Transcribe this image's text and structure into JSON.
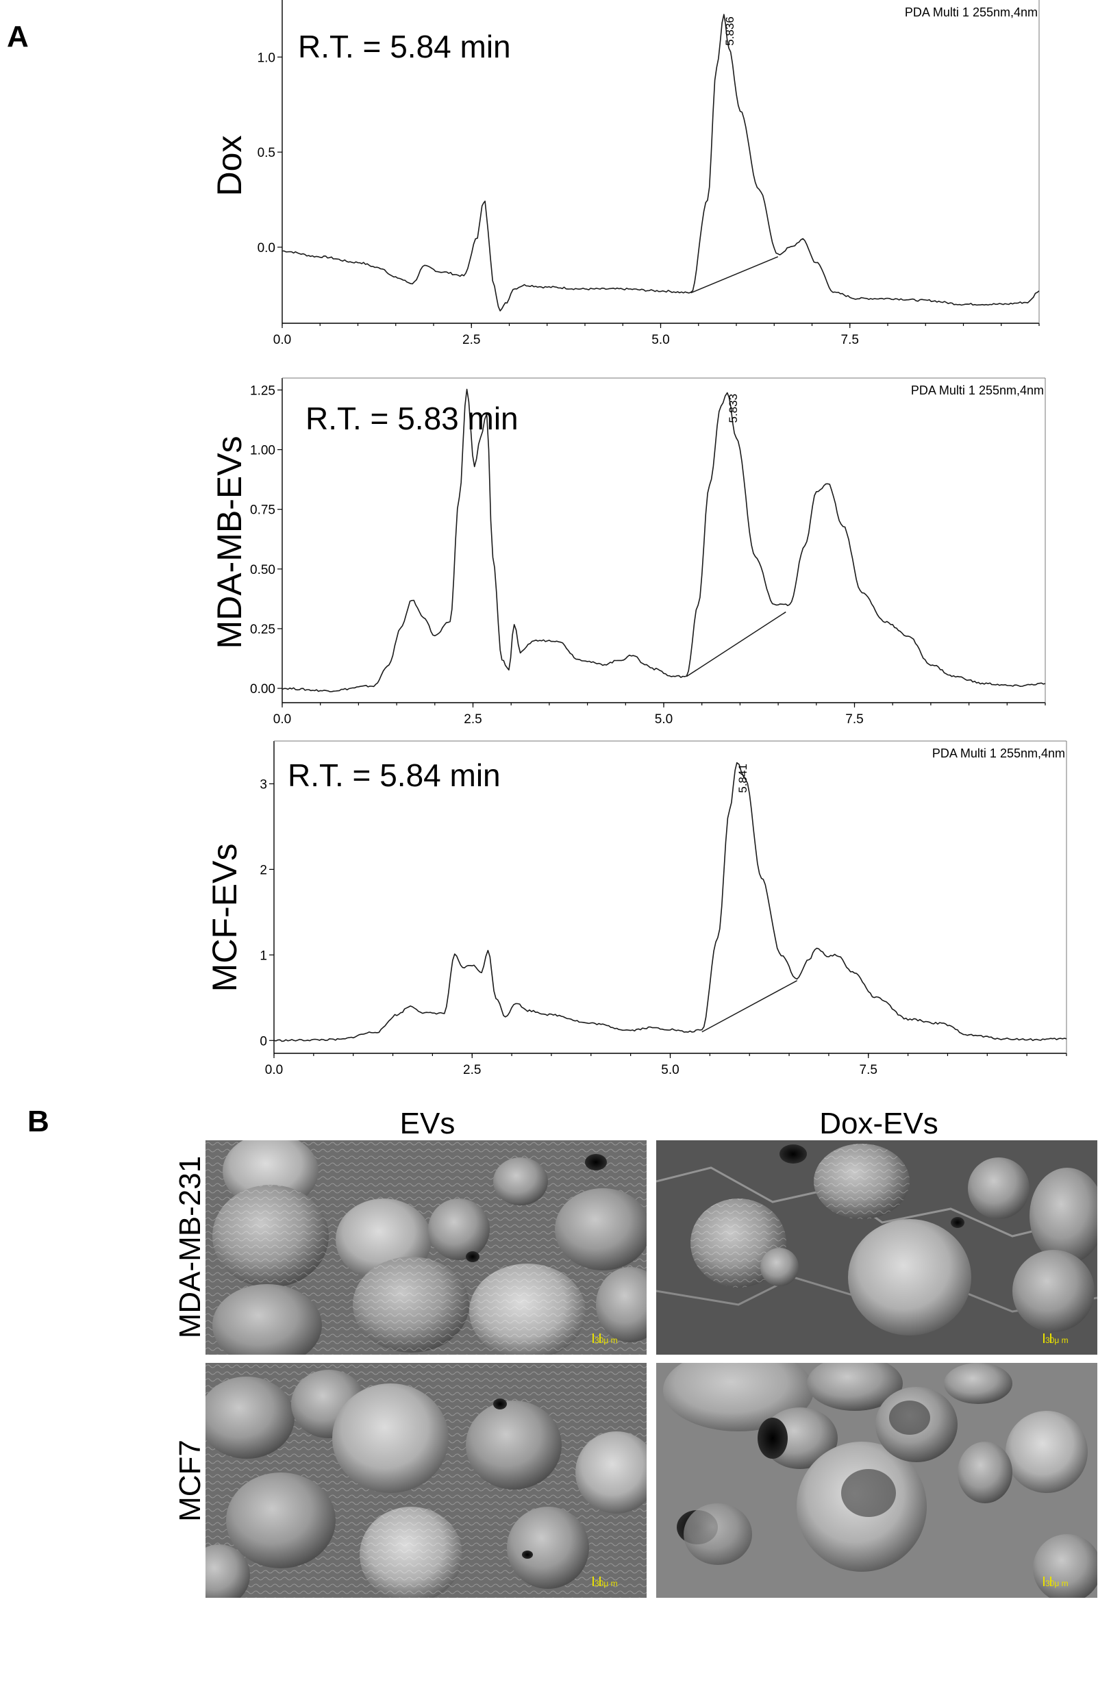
{
  "panel_a": {
    "letter": "A"
  },
  "panel_b": {
    "letter": "B",
    "column_titles": [
      "EVs",
      "Dox-EVs"
    ],
    "row_titles": [
      "MDA-MB-231",
      "MCF7"
    ],
    "scale_label": "30μ m",
    "colors": {
      "scale_bar": "#e8e000",
      "sem_background": "#6d6d6d"
    }
  },
  "chart_data": [
    {
      "type": "line",
      "ylabel": "Dox",
      "detector": "PDA Multi 1 255nm,4nm",
      "annotation": "R.T. = 5.84 min",
      "peak_label": "5.836",
      "xlim": [
        0,
        10
      ],
      "ylim": [
        -0.4,
        1.3
      ],
      "x_ticks": [
        "0.0",
        "2.5",
        "5.0",
        "7.5"
      ],
      "y_ticks": [
        "0.0",
        "0.5",
        "1.0"
      ],
      "x_tick_values": [
        0,
        2.5,
        5,
        7.5
      ],
      "y_tick_values": [
        0,
        0.5,
        1.0
      ],
      "integration_baseline": [
        [
          5.4,
          -0.24
        ],
        [
          6.55,
          -0.05
        ]
      ],
      "x": [
        0,
        0.5,
        1.0,
        1.3,
        1.5,
        1.72,
        1.88,
        2.1,
        2.4,
        2.58,
        2.64,
        2.68,
        2.72,
        2.78,
        2.88,
        2.97,
        3.05,
        3.2,
        3.5,
        4.0,
        4.5,
        5.0,
        5.4,
        5.62,
        5.74,
        5.836,
        5.9,
        6.05,
        6.3,
        6.55,
        6.72,
        6.88,
        7.05,
        7.3,
        7.6,
        8.0,
        8.5,
        9.0,
        9.5,
        9.85,
        10.0
      ],
      "y": [
        -0.02,
        -0.05,
        -0.08,
        -0.11,
        -0.16,
        -0.19,
        -0.1,
        -0.13,
        -0.15,
        0.05,
        0.22,
        0.24,
        0.08,
        -0.18,
        -0.33,
        -0.29,
        -0.22,
        -0.2,
        -0.21,
        -0.22,
        -0.22,
        -0.23,
        -0.24,
        0.25,
        0.95,
        1.22,
        1.05,
        0.72,
        0.3,
        -0.04,
        0.0,
        0.04,
        -0.08,
        -0.24,
        -0.27,
        -0.27,
        -0.28,
        -0.3,
        -0.3,
        -0.29,
        -0.23
      ]
    },
    {
      "type": "line",
      "ylabel": "MDA-MB-EVs",
      "detector": "PDA Multi 1 255nm,4nm",
      "annotation": "R.T. = 5.83 min",
      "peak_label": "5.833",
      "xlim": [
        0,
        10
      ],
      "ylim": [
        -0.06,
        1.3
      ],
      "x_ticks": [
        "0.0",
        "2.5",
        "5.0",
        "7.5"
      ],
      "y_ticks": [
        "0.00",
        "0.25",
        "0.50",
        "0.75",
        "1.00",
        "1.25"
      ],
      "x_tick_values": [
        0,
        2.5,
        5,
        7.5
      ],
      "y_tick_values": [
        0,
        0.25,
        0.5,
        0.75,
        1.0,
        1.25
      ],
      "integration_baseline": [
        [
          5.3,
          0.05
        ],
        [
          6.6,
          0.32
        ]
      ],
      "x": [
        0,
        0.6,
        1.2,
        1.4,
        1.55,
        1.7,
        1.85,
        2.0,
        2.2,
        2.32,
        2.42,
        2.52,
        2.6,
        2.68,
        2.76,
        2.88,
        2.97,
        3.04,
        3.12,
        3.3,
        3.6,
        3.9,
        4.2,
        4.45,
        4.6,
        4.75,
        4.9,
        5.1,
        5.3,
        5.45,
        5.6,
        5.75,
        5.833,
        5.95,
        6.2,
        6.45,
        6.65,
        6.85,
        7.0,
        7.15,
        7.35,
        7.6,
        7.9,
        8.2,
        8.5,
        8.8,
        9.2,
        9.6,
        10.0
      ],
      "y": [
        0.0,
        -0.01,
        0.01,
        0.1,
        0.25,
        0.37,
        0.3,
        0.22,
        0.28,
        0.8,
        1.25,
        0.93,
        1.05,
        1.15,
        0.55,
        0.12,
        0.08,
        0.27,
        0.15,
        0.2,
        0.2,
        0.12,
        0.1,
        0.12,
        0.14,
        0.1,
        0.08,
        0.05,
        0.05,
        0.35,
        0.85,
        1.18,
        1.24,
        1.05,
        0.55,
        0.35,
        0.35,
        0.6,
        0.82,
        0.86,
        0.68,
        0.4,
        0.28,
        0.22,
        0.1,
        0.05,
        0.02,
        0.01,
        0.02
      ]
    },
    {
      "type": "line",
      "ylabel": "MCF-EVs",
      "detector": "PDA Multi 1 255nm,4nm",
      "annotation": "R.T. = 5.84 min",
      "peak_label": "5.841",
      "xlim": [
        0,
        10
      ],
      "ylim": [
        -0.15,
        3.5
      ],
      "x_ticks": [
        "0.0",
        "2.5",
        "5.0",
        "7.5"
      ],
      "y_ticks": [
        "0",
        "1",
        "2",
        "3"
      ],
      "x_tick_values": [
        0,
        2.5,
        5,
        7.5
      ],
      "y_tick_values": [
        0,
        1,
        2,
        3
      ],
      "integration_baseline": [
        [
          5.4,
          0.1
        ],
        [
          6.6,
          0.7
        ]
      ],
      "x": [
        0,
        0.8,
        1.3,
        1.55,
        1.72,
        1.9,
        2.15,
        2.28,
        2.38,
        2.5,
        2.62,
        2.7,
        2.8,
        2.92,
        3.05,
        3.2,
        3.5,
        4.0,
        4.5,
        4.75,
        5.0,
        5.2,
        5.4,
        5.6,
        5.75,
        5.841,
        5.95,
        6.15,
        6.4,
        6.6,
        6.75,
        6.85,
        7.0,
        7.1,
        7.3,
        7.6,
        8.0,
        8.4,
        8.8,
        9.2,
        9.6,
        10.0
      ],
      "y": [
        0.0,
        0.01,
        0.1,
        0.3,
        0.4,
        0.32,
        0.32,
        1.0,
        0.85,
        0.88,
        0.8,
        1.05,
        0.5,
        0.28,
        0.44,
        0.35,
        0.3,
        0.2,
        0.12,
        0.15,
        0.13,
        0.1,
        0.12,
        1.2,
        2.7,
        3.25,
        3.05,
        1.9,
        1.0,
        0.72,
        0.95,
        1.08,
        0.98,
        1.0,
        0.8,
        0.5,
        0.25,
        0.2,
        0.06,
        0.02,
        0.01,
        0.02
      ]
    }
  ]
}
